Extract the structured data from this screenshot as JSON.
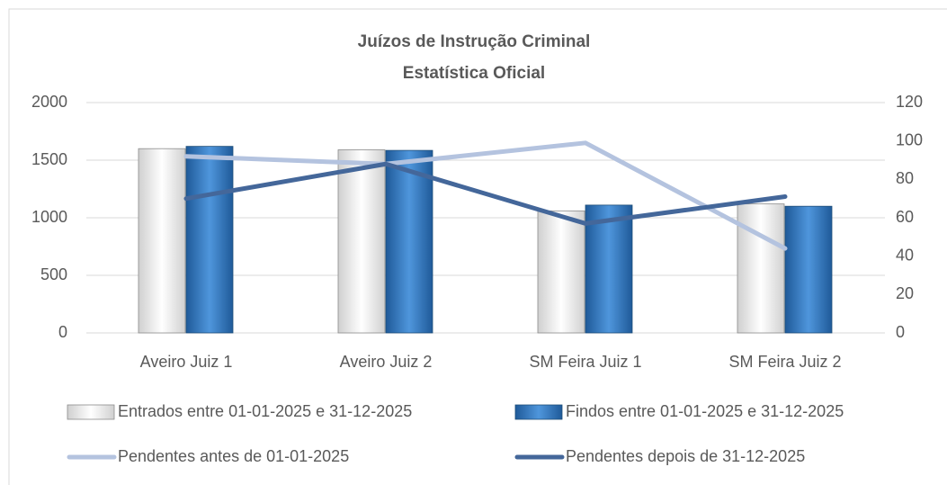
{
  "chart_data": {
    "type": "combo",
    "title": "Juízos de Instrução Criminal",
    "subtitle": "Estatística Oficial",
    "categories": [
      "Aveiro Juiz 1",
      "Aveiro Juiz 2",
      "SM Feira Juiz 1",
      "SM Feira Juiz 2"
    ],
    "series": [
      {
        "name": "Entrados entre 01-01-2025 e 31-12-2025",
        "type": "bar",
        "color": "#e7e7e7",
        "values": [
          1600,
          1590,
          1060,
          1120
        ]
      },
      {
        "name": "Findos entre 01-01-2025 e 31-12-2025",
        "type": "bar",
        "color": "#2e75b6",
        "values": [
          1620,
          1585,
          1110,
          1100
        ]
      },
      {
        "name": "Pendentes antes de 01-01-2025",
        "type": "line",
        "axis": "y2",
        "color": "#b4c3df",
        "values": [
          92,
          88,
          99,
          44
        ]
      },
      {
        "name": "Pendentes depois de 31-12-2025",
        "type": "line",
        "axis": "y2",
        "color": "#44679a",
        "values": [
          70,
          88,
          57,
          71
        ]
      }
    ],
    "ylim": [
      0,
      2000
    ],
    "yticks": [
      0,
      500,
      1000,
      1500,
      2000
    ],
    "y2lim": [
      0,
      120
    ],
    "y2ticks": [
      0,
      20,
      40,
      60,
      80,
      100,
      120
    ],
    "grid": true,
    "legend": "bottom"
  }
}
